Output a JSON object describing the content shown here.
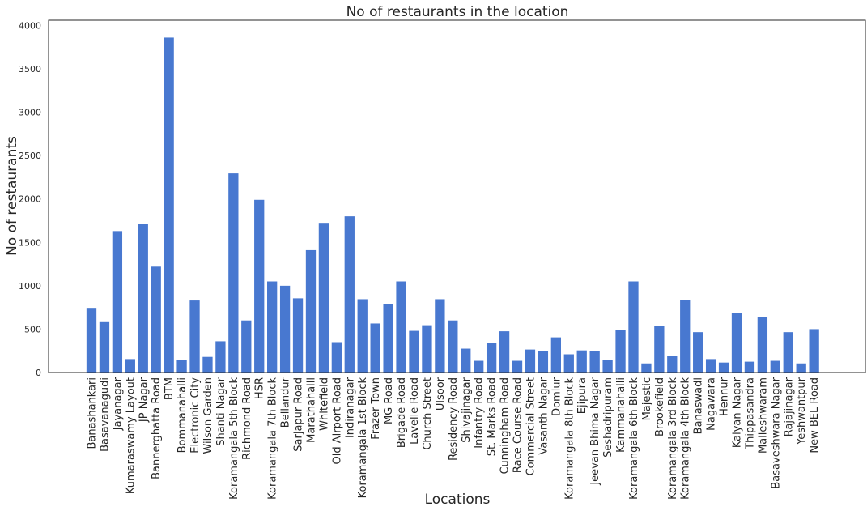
{
  "chart_data": {
    "type": "bar",
    "title": "No of restaurants in the location",
    "xlabel": "Locations",
    "ylabel": "No of restaurants",
    "ylim": [
      0,
      4060
    ],
    "yticks": [
      0,
      500,
      1000,
      1500,
      2000,
      2500,
      3000,
      3500,
      4000
    ],
    "grid": false,
    "bar_color": "#4878d0",
    "categories": [
      "Banashankari",
      "Basavanagudi",
      "Jayanagar",
      "Kumaraswamy Layout",
      "JP Nagar",
      "Bannerghatta Road",
      "BTM",
      "Bommanahalli",
      "Electronic City",
      "Wilson Garden",
      "Shanti Nagar",
      "Koramangala 5th Block",
      "Richmond Road",
      "HSR",
      "Koramangala 7th Block",
      "Bellandur",
      "Sarjapur Road",
      "Marathahalli",
      "Whitefield",
      "Old Airport Road",
      "Indiranagar",
      "Koramangala 1st Block",
      "Frazer Town",
      "MG Road",
      "Brigade Road",
      "Lavelle Road",
      "Church Street",
      "Ulsoor",
      "Residency Road",
      "Shivajinagar",
      "Infantry Road",
      "St. Marks Road",
      "Cunningham Road",
      "Race Course Road",
      "Commercial Street",
      "Vasanth Nagar",
      "Domlur",
      "Koramangala 8th Block",
      "Ejipura",
      "Jeevan Bhima Nagar",
      "Seshadripuram",
      "Kammanahalli",
      "Koramangala 6th Block",
      "Majestic",
      "Brookefield",
      "Koramangala 3rd Block",
      "Koramangala 4th Block",
      "Banaswadi",
      "Nagawara",
      "Hennur",
      "Kalyan Nagar",
      "Thippasandra",
      "Malleshwaram",
      "Basaveshwara Nagar",
      "Rajajinagar",
      "Yeshwantpur",
      "New BEL Road"
    ],
    "values": [
      745,
      590,
      1630,
      155,
      1710,
      1220,
      3860,
      145,
      830,
      180,
      360,
      2295,
      600,
      1990,
      1050,
      1000,
      855,
      1410,
      1725,
      350,
      1800,
      845,
      565,
      790,
      1050,
      480,
      545,
      845,
      600,
      275,
      135,
      340,
      475,
      135,
      265,
      245,
      405,
      210,
      255,
      245,
      145,
      490,
      1050,
      105,
      540,
      190,
      835,
      465,
      155,
      115,
      690,
      125,
      640,
      135,
      465,
      105,
      500
    ]
  }
}
